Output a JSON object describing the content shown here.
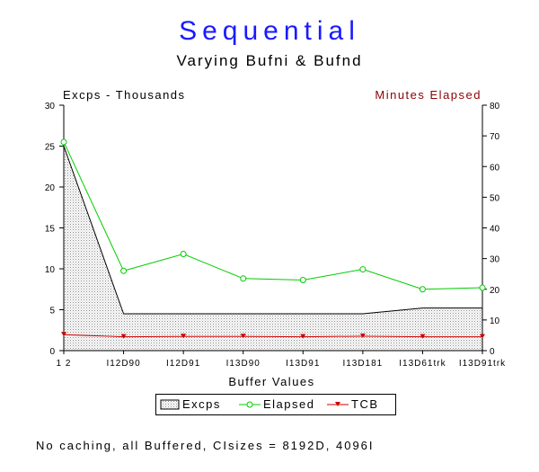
{
  "chart_data": {
    "type": "line",
    "title": "Sequential",
    "subtitle": "Varying Bufni & Bufnd",
    "ylabel_left": "Excps - Thousands",
    "ylabel_right": "Minutes Elapsed",
    "xlabel": "Buffer Values",
    "categories": [
      "1 2",
      "I12D90",
      "I12D91",
      "I13D90",
      "I13D91",
      "I13D181",
      "I13D61trk",
      "I13D91trk"
    ],
    "ylim_left": [
      0,
      30
    ],
    "ylim_right": [
      0,
      80
    ],
    "yticks_left": [
      0,
      5,
      10,
      15,
      20,
      25,
      30
    ],
    "yticks_right": [
      0,
      10,
      20,
      30,
      40,
      50,
      60,
      70,
      80
    ],
    "series": [
      {
        "name": "Excps",
        "axis": "left",
        "style": "area",
        "color": "#000000",
        "values": [
          25.0,
          4.5,
          4.5,
          4.5,
          4.5,
          4.5,
          5.2,
          5.2
        ]
      },
      {
        "name": "Elapsed",
        "axis": "right",
        "style": "line-circle",
        "color": "#00cc00",
        "values": [
          68,
          26,
          31.5,
          23.5,
          23,
          26.5,
          20,
          20.5
        ]
      },
      {
        "name": "TCB",
        "axis": "right",
        "style": "line-triangle",
        "color": "#cc0000",
        "values": [
          5.2,
          4.5,
          4.6,
          4.6,
          4.5,
          4.7,
          4.5,
          4.5
        ]
      }
    ],
    "legend_position": "bottom-center",
    "grid": false
  },
  "footnote": "No caching, all Buffered, CIsizes = 8192D, 4096I"
}
